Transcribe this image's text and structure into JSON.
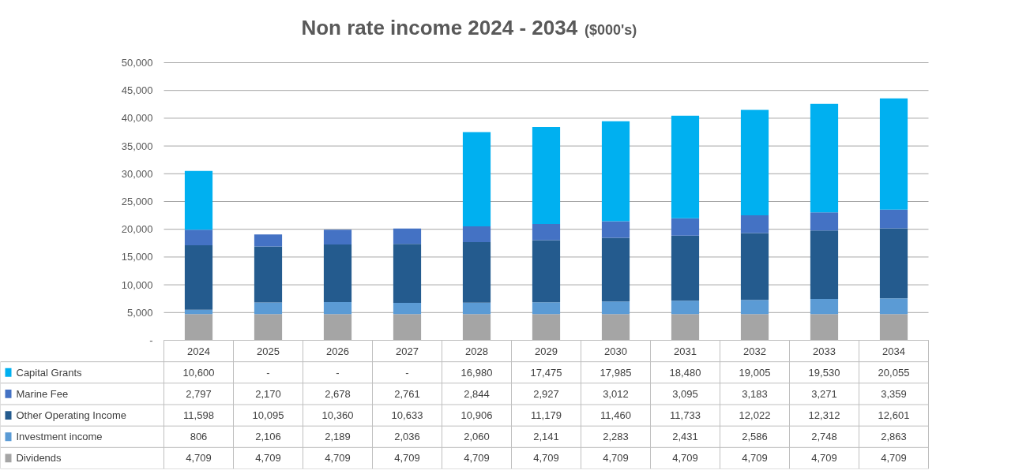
{
  "chart_data": {
    "type": "bar",
    "title": "Non rate income 2024 - 2034",
    "subtitle": "($000's)",
    "stacked": true,
    "legend": "bottom",
    "grid": "y",
    "categories": [
      "2024",
      "2025",
      "2026",
      "2027",
      "2028",
      "2029",
      "2030",
      "2031",
      "2032",
      "2033",
      "2034"
    ],
    "ylim": [
      0,
      50000
    ],
    "yticks": [
      {
        "value": 0,
        "label": "-"
      },
      {
        "value": 5000,
        "label": "5,000"
      },
      {
        "value": 10000,
        "label": "10,000"
      },
      {
        "value": 15000,
        "label": "15,000"
      },
      {
        "value": 20000,
        "label": "20,000"
      },
      {
        "value": 25000,
        "label": "25,000"
      },
      {
        "value": 30000,
        "label": "30,000"
      },
      {
        "value": 35000,
        "label": "35,000"
      },
      {
        "value": 40000,
        "label": "40,000"
      },
      {
        "value": 45000,
        "label": "45,000"
      },
      {
        "value": 50000,
        "label": "50,000"
      }
    ],
    "series": [
      {
        "name": "Dividends",
        "color": "#a5a5a5",
        "values": [
          4709,
          4709,
          4709,
          4709,
          4709,
          4709,
          4709,
          4709,
          4709,
          4709,
          4709
        ],
        "value_labels": [
          "4,709",
          "4,709",
          "4,709",
          "4,709",
          "4,709",
          "4,709",
          "4,709",
          "4,709",
          "4,709",
          "4,709",
          "4,709"
        ]
      },
      {
        "name": "Investment income",
        "color": "#5b9bd5",
        "values": [
          806,
          2106,
          2189,
          2036,
          2060,
          2141,
          2283,
          2431,
          2586,
          2748,
          2863
        ],
        "value_labels": [
          "806",
          "2,106",
          "2,189",
          "2,036",
          "2,060",
          "2,141",
          "2,283",
          "2,431",
          "2,586",
          "2,748",
          "2,863"
        ]
      },
      {
        "name": "Other Operating Income",
        "color": "#245b8e",
        "values": [
          11598,
          10095,
          10360,
          10633,
          10906,
          11179,
          11460,
          11733,
          12022,
          12312,
          12601
        ],
        "value_labels": [
          "11,598",
          "10,095",
          "10,360",
          "10,633",
          "10,906",
          "11,179",
          "11,460",
          "11,733",
          "12,022",
          "12,312",
          "12,601"
        ]
      },
      {
        "name": "Marine Fee",
        "color": "#4472c4",
        "values": [
          2797,
          2170,
          2678,
          2761,
          2844,
          2927,
          3012,
          3095,
          3183,
          3271,
          3359
        ],
        "value_labels": [
          "2,797",
          "2,170",
          "2,678",
          "2,761",
          "2,844",
          "2,927",
          "3,012",
          "3,095",
          "3,183",
          "3,271",
          "3,359"
        ]
      },
      {
        "name": "Capital Grants",
        "color": "#00b0f0",
        "values": [
          10600,
          0,
          0,
          0,
          16980,
          17475,
          17985,
          18480,
          19005,
          19530,
          20055
        ],
        "value_labels": [
          "10,600",
          "-",
          "-",
          "-",
          "16,980",
          "17,475",
          "17,985",
          "18,480",
          "19,005",
          "19,530",
          "20,055"
        ]
      }
    ]
  }
}
